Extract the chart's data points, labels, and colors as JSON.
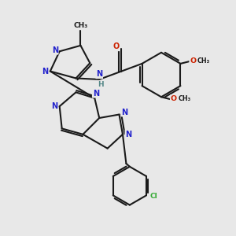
{
  "background_color": "#e8e8e8",
  "bond_color": "#1a1a1a",
  "n_color": "#2222cc",
  "o_color": "#cc2200",
  "cl_color": "#33aa33",
  "h_color": "#558888",
  "fs": 7.0,
  "fs_small": 6.0,
  "lw": 1.5,
  "xlim": [
    0,
    10
  ],
  "ylim": [
    0,
    10
  ]
}
